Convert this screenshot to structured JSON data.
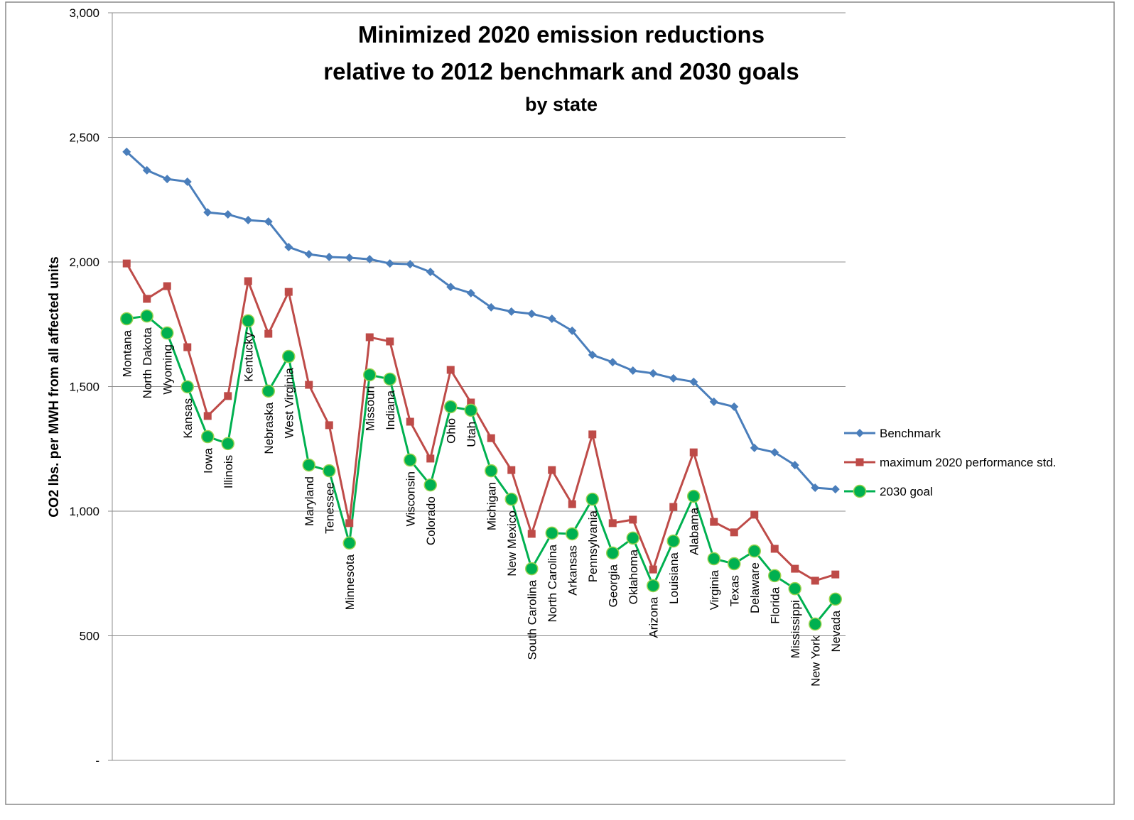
{
  "chart_data": {
    "type": "line",
    "title": [
      "Minimized 2020 emission reductions",
      "relative to 2012 benchmark and 2030 goals"
    ],
    "subtitle": "by state",
    "y_label": "CO2 lbs. per MWH from all affected units",
    "categories": [
      "Montana",
      "North Dakota",
      "Wyoming",
      "Kansas",
      "Iowa",
      "Illinois",
      "Kentucky",
      "Nebraska",
      "West Virginia",
      "Maryland",
      "Tenessee",
      "Minnesota",
      "Missouri",
      "Indiana",
      "Wisconsin",
      "Colorado",
      "Ohio",
      "Utah",
      "Michigan",
      "New Mexico",
      "South Carolina",
      "North Carolina",
      "Arkansas",
      "Pennsylvania",
      "Georgia",
      "Oklahoma",
      "Arizona",
      "Louisiana",
      "Alabama",
      "Virginia",
      "Texas",
      "Delaware",
      "Florida",
      "Mississippi",
      "New York",
      "Nevada"
    ],
    "series": [
      {
        "name": "Benchmark",
        "color": "#4a7ebb",
        "marker": "diamond",
        "values": [
          2442,
          2368,
          2333,
          2322,
          2199,
          2191,
          2168,
          2162,
          2060,
          2031,
          2020,
          2017,
          2011,
          1994,
          1991,
          1960,
          1900,
          1875,
          1818,
          1801,
          1792,
          1772,
          1724,
          1627,
          1598,
          1564,
          1553,
          1533,
          1519,
          1439,
          1419,
          1254,
          1236,
          1185,
          1094,
          1088
        ]
      },
      {
        "name": "maximum 2020 performance std.",
        "color": "#be4b48",
        "marker": "square",
        "values": [
          1994,
          1852,
          1903,
          1658,
          1382,
          1462,
          1923,
          1712,
          1880,
          1507,
          1345,
          952,
          1698,
          1681,
          1359,
          1211,
          1567,
          1436,
          1293,
          1165,
          909,
          1165,
          1028,
          1308,
          952,
          966,
          766,
          1017,
          1236,
          957,
          915,
          986,
          849,
          769,
          721,
          746
        ]
      },
      {
        "name": "2030 goal",
        "color": "#00b050",
        "marker": "circle",
        "values": [
          1772,
          1783,
          1715,
          1499,
          1299,
          1271,
          1764,
          1482,
          1621,
          1185,
          1162,
          872,
          1547,
          1530,
          1205,
          1105,
          1419,
          1405,
          1162,
          1048,
          769,
          912,
          909,
          1048,
          832,
          892,
          701,
          880,
          1060,
          809,
          789,
          840,
          741,
          689,
          547,
          647
        ]
      }
    ],
    "ylim": [
      0,
      3000
    ],
    "yticks": [
      {
        "value": 0,
        "label": "-"
      },
      500,
      {
        "value": 1000,
        "label": "1,000"
      },
      {
        "value": 1500,
        "label": "1,500"
      },
      {
        "value": 2000,
        "label": "2,000"
      },
      {
        "value": 2500,
        "label": "2,500"
      },
      {
        "value": 3000,
        "label": "3,000"
      }
    ],
    "grid": true,
    "legend": "right"
  }
}
